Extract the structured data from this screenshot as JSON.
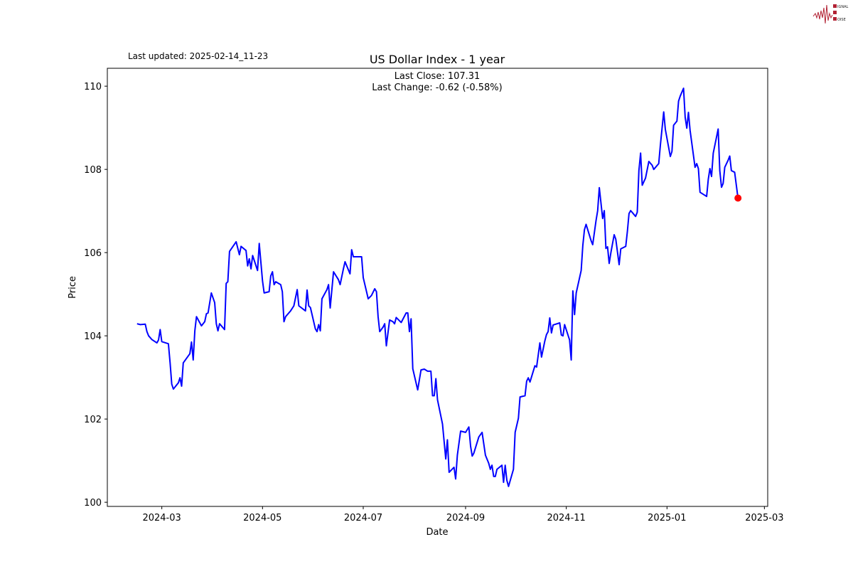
{
  "header": {
    "last_updated": "Last updated: 2025-02-14_11-23"
  },
  "logo": {
    "text": "SIGNAL 2 NOISE",
    "accent": "#b22234"
  },
  "chart_data": {
    "type": "line",
    "title": "US Dollar Index - 1 year",
    "annotations": [
      "Last Close: 107.31",
      "Last Change: -0.62 (-0.58%)"
    ],
    "xlabel": "Date",
    "ylabel": "Price",
    "xlim": [
      "2024-01-28",
      "2025-03-03"
    ],
    "ylim": [
      99.9,
      110.43
    ],
    "x_ticks": [
      "2024-03-01",
      "2024-05-01",
      "2024-07-01",
      "2024-09-01",
      "2024-11-01",
      "2025-01-01",
      "2025-03-01"
    ],
    "x_tick_labels": [
      "2024-03",
      "2024-05",
      "2024-07",
      "2024-09",
      "2024-11",
      "2025-01",
      "2025-03"
    ],
    "y_ticks": [
      100,
      102,
      104,
      106,
      108,
      110
    ],
    "y_tick_labels": [
      "100",
      "102",
      "104",
      "106",
      "108",
      "110"
    ],
    "grid": false,
    "line_color": "#0000ff",
    "last_point_color": "#ff0000",
    "last_point": {
      "date": "2025-02-13",
      "value": 107.31
    },
    "series": [
      {
        "points": [
          [
            "2024-02-15",
            104.29
          ],
          [
            "2024-02-17",
            104.27
          ],
          [
            "2024-02-20",
            104.28
          ],
          [
            "2024-02-21",
            104.1
          ],
          [
            "2024-02-22",
            104.0
          ],
          [
            "2024-02-24",
            103.91
          ],
          [
            "2024-02-27",
            103.83
          ],
          [
            "2024-02-28",
            103.9
          ],
          [
            "2024-02-29",
            104.15
          ],
          [
            "2024-03-01",
            103.86
          ],
          [
            "2024-03-05",
            103.81
          ],
          [
            "2024-03-06",
            103.35
          ],
          [
            "2024-03-07",
            102.84
          ],
          [
            "2024-03-08",
            102.72
          ],
          [
            "2024-03-11",
            102.87
          ],
          [
            "2024-03-12",
            102.99
          ],
          [
            "2024-03-13",
            102.79
          ],
          [
            "2024-03-14",
            103.35
          ],
          [
            "2024-03-18",
            103.57
          ],
          [
            "2024-03-19",
            103.85
          ],
          [
            "2024-03-20",
            103.42
          ],
          [
            "2024-03-21",
            104.12
          ],
          [
            "2024-03-22",
            104.46
          ],
          [
            "2024-03-25",
            104.24
          ],
          [
            "2024-03-27",
            104.34
          ],
          [
            "2024-03-28",
            104.53
          ],
          [
            "2024-03-29",
            104.55
          ],
          [
            "2024-03-31",
            105.03
          ],
          [
            "2024-04-02",
            104.8
          ],
          [
            "2024-04-03",
            104.29
          ],
          [
            "2024-04-04",
            104.12
          ],
          [
            "2024-04-05",
            104.29
          ],
          [
            "2024-04-08",
            104.15
          ],
          [
            "2024-04-09",
            105.26
          ],
          [
            "2024-04-10",
            105.3
          ],
          [
            "2024-04-11",
            106.03
          ],
          [
            "2024-04-15",
            106.26
          ],
          [
            "2024-04-17",
            105.95
          ],
          [
            "2024-04-18",
            106.15
          ],
          [
            "2024-04-21",
            106.05
          ],
          [
            "2024-04-22",
            105.68
          ],
          [
            "2024-04-23",
            105.85
          ],
          [
            "2024-04-24",
            105.61
          ],
          [
            "2024-04-25",
            105.93
          ],
          [
            "2024-04-28",
            105.57
          ],
          [
            "2024-04-29",
            106.22
          ],
          [
            "2024-05-01",
            105.32
          ],
          [
            "2024-05-02",
            105.03
          ],
          [
            "2024-05-05",
            105.06
          ],
          [
            "2024-05-06",
            105.44
          ],
          [
            "2024-05-07",
            105.54
          ],
          [
            "2024-05-08",
            105.23
          ],
          [
            "2024-05-09",
            105.3
          ],
          [
            "2024-05-12",
            105.23
          ],
          [
            "2024-05-13",
            105.06
          ],
          [
            "2024-05-14",
            104.34
          ],
          [
            "2024-05-15",
            104.46
          ],
          [
            "2024-05-18",
            104.6
          ],
          [
            "2024-05-20",
            104.72
          ],
          [
            "2024-05-22",
            105.11
          ],
          [
            "2024-05-23",
            104.72
          ],
          [
            "2024-05-27",
            104.6
          ],
          [
            "2024-05-28",
            105.1
          ],
          [
            "2024-05-29",
            104.72
          ],
          [
            "2024-05-30",
            104.68
          ],
          [
            "2024-06-02",
            104.17
          ],
          [
            "2024-06-03",
            104.1
          ],
          [
            "2024-06-04",
            104.27
          ],
          [
            "2024-06-05",
            104.12
          ],
          [
            "2024-06-06",
            104.89
          ],
          [
            "2024-06-09",
            105.11
          ],
          [
            "2024-06-10",
            105.23
          ],
          [
            "2024-06-11",
            104.67
          ],
          [
            "2024-06-13",
            105.54
          ],
          [
            "2024-06-16",
            105.35
          ],
          [
            "2024-06-17",
            105.23
          ],
          [
            "2024-06-19",
            105.61
          ],
          [
            "2024-06-20",
            105.78
          ],
          [
            "2024-06-23",
            105.49
          ],
          [
            "2024-06-24",
            106.07
          ],
          [
            "2024-06-25",
            105.9
          ],
          [
            "2024-06-27",
            105.9
          ],
          [
            "2024-06-30",
            105.9
          ],
          [
            "2024-07-01",
            105.4
          ],
          [
            "2024-07-04",
            104.89
          ],
          [
            "2024-07-06",
            104.97
          ],
          [
            "2024-07-08",
            105.13
          ],
          [
            "2024-07-09",
            105.06
          ],
          [
            "2024-07-10",
            104.46
          ],
          [
            "2024-07-11",
            104.1
          ],
          [
            "2024-07-13",
            104.21
          ],
          [
            "2024-07-14",
            104.29
          ],
          [
            "2024-07-15",
            103.76
          ],
          [
            "2024-07-17",
            104.38
          ],
          [
            "2024-07-19",
            104.34
          ],
          [
            "2024-07-20",
            104.29
          ],
          [
            "2024-07-21",
            104.44
          ],
          [
            "2024-07-24",
            104.32
          ],
          [
            "2024-07-27",
            104.55
          ],
          [
            "2024-07-28",
            104.55
          ],
          [
            "2024-07-29",
            104.1
          ],
          [
            "2024-07-30",
            104.41
          ],
          [
            "2024-07-31",
            103.21
          ],
          [
            "2024-08-03",
            102.7
          ],
          [
            "2024-08-05",
            103.18
          ],
          [
            "2024-08-07",
            103.2
          ],
          [
            "2024-08-09",
            103.15
          ],
          [
            "2024-08-11",
            103.15
          ],
          [
            "2024-08-12",
            102.56
          ],
          [
            "2024-08-13",
            102.56
          ],
          [
            "2024-08-14",
            102.97
          ],
          [
            "2024-08-15",
            102.46
          ],
          [
            "2024-08-18",
            101.88
          ],
          [
            "2024-08-20",
            101.04
          ],
          [
            "2024-08-21",
            101.5
          ],
          [
            "2024-08-22",
            100.72
          ],
          [
            "2024-08-25",
            100.84
          ],
          [
            "2024-08-26",
            100.56
          ],
          [
            "2024-08-27",
            101.13
          ],
          [
            "2024-08-29",
            101.71
          ],
          [
            "2024-09-01",
            101.68
          ],
          [
            "2024-09-03",
            101.81
          ],
          [
            "2024-09-04",
            101.35
          ],
          [
            "2024-09-05",
            101.11
          ],
          [
            "2024-09-06",
            101.18
          ],
          [
            "2024-09-09",
            101.57
          ],
          [
            "2024-09-11",
            101.68
          ],
          [
            "2024-09-13",
            101.13
          ],
          [
            "2024-09-15",
            100.94
          ],
          [
            "2024-09-16",
            100.79
          ],
          [
            "2024-09-17",
            100.89
          ],
          [
            "2024-09-18",
            100.62
          ],
          [
            "2024-09-19",
            100.62
          ],
          [
            "2024-09-20",
            100.79
          ],
          [
            "2024-09-23",
            100.89
          ],
          [
            "2024-09-24",
            100.48
          ],
          [
            "2024-09-25",
            100.89
          ],
          [
            "2024-09-26",
            100.53
          ],
          [
            "2024-09-27",
            100.38
          ],
          [
            "2024-09-30",
            100.79
          ],
          [
            "2024-10-01",
            101.68
          ],
          [
            "2024-10-03",
            102.02
          ],
          [
            "2024-10-04",
            102.53
          ],
          [
            "2024-10-07",
            102.56
          ],
          [
            "2024-10-08",
            102.91
          ],
          [
            "2024-10-09",
            102.99
          ],
          [
            "2024-10-10",
            102.89
          ],
          [
            "2024-10-13",
            103.28
          ],
          [
            "2024-10-14",
            103.25
          ],
          [
            "2024-10-16",
            103.83
          ],
          [
            "2024-10-17",
            103.49
          ],
          [
            "2024-10-19",
            103.88
          ],
          [
            "2024-10-20",
            104.03
          ],
          [
            "2024-10-21",
            104.1
          ],
          [
            "2024-10-22",
            104.43
          ],
          [
            "2024-10-23",
            104.07
          ],
          [
            "2024-10-24",
            104.26
          ],
          [
            "2024-10-28",
            104.31
          ],
          [
            "2024-10-29",
            104.02
          ],
          [
            "2024-10-30",
            104.0
          ],
          [
            "2024-10-31",
            104.27
          ],
          [
            "2024-11-03",
            103.9
          ],
          [
            "2024-11-04",
            103.42
          ],
          [
            "2024-11-05",
            105.08
          ],
          [
            "2024-11-06",
            104.51
          ],
          [
            "2024-11-07",
            105.03
          ],
          [
            "2024-11-10",
            105.57
          ],
          [
            "2024-11-11",
            106.17
          ],
          [
            "2024-11-12",
            106.55
          ],
          [
            "2024-11-13",
            106.68
          ],
          [
            "2024-11-16",
            106.29
          ],
          [
            "2024-11-17",
            106.19
          ],
          [
            "2024-11-19",
            106.77
          ],
          [
            "2024-11-20",
            107.01
          ],
          [
            "2024-11-21",
            107.56
          ],
          [
            "2024-11-22",
            107.2
          ],
          [
            "2024-11-23",
            106.82
          ],
          [
            "2024-11-24",
            107.01
          ],
          [
            "2024-11-25",
            106.1
          ],
          [
            "2024-11-26",
            106.14
          ],
          [
            "2024-11-27",
            105.74
          ],
          [
            "2024-11-28",
            106.0
          ],
          [
            "2024-11-30",
            106.43
          ],
          [
            "2024-12-01",
            106.32
          ],
          [
            "2024-12-03",
            105.71
          ],
          [
            "2024-12-04",
            106.09
          ],
          [
            "2024-12-07",
            106.15
          ],
          [
            "2024-12-08",
            106.51
          ],
          [
            "2024-12-09",
            106.94
          ],
          [
            "2024-12-10",
            107.01
          ],
          [
            "2024-12-13",
            106.87
          ],
          [
            "2024-12-14",
            106.97
          ],
          [
            "2024-12-15",
            107.97
          ],
          [
            "2024-12-16",
            108.39
          ],
          [
            "2024-12-17",
            107.62
          ],
          [
            "2024-12-19",
            107.79
          ],
          [
            "2024-12-21",
            108.19
          ],
          [
            "2024-12-23",
            108.1
          ],
          [
            "2024-12-24",
            108.0
          ],
          [
            "2024-12-27",
            108.14
          ],
          [
            "2024-12-28",
            108.58
          ],
          [
            "2024-12-30",
            109.38
          ],
          [
            "2024-12-31",
            108.96
          ],
          [
            "2025-01-03",
            108.31
          ],
          [
            "2025-01-04",
            108.43
          ],
          [
            "2025-01-05",
            109.06
          ],
          [
            "2025-01-07",
            109.16
          ],
          [
            "2025-01-08",
            109.64
          ],
          [
            "2025-01-09",
            109.76
          ],
          [
            "2025-01-11",
            109.95
          ],
          [
            "2025-01-12",
            109.25
          ],
          [
            "2025-01-13",
            108.99
          ],
          [
            "2025-01-14",
            109.37
          ],
          [
            "2025-01-15",
            108.94
          ],
          [
            "2025-01-18",
            108.05
          ],
          [
            "2025-01-19",
            108.14
          ],
          [
            "2025-01-20",
            108.02
          ],
          [
            "2025-01-21",
            107.45
          ],
          [
            "2025-01-25",
            107.35
          ],
          [
            "2025-01-26",
            107.76
          ],
          [
            "2025-01-27",
            108.02
          ],
          [
            "2025-01-28",
            107.83
          ],
          [
            "2025-01-29",
            108.39
          ],
          [
            "2025-02-01",
            108.97
          ],
          [
            "2025-02-02",
            107.97
          ],
          [
            "2025-02-03",
            107.57
          ],
          [
            "2025-02-04",
            107.66
          ],
          [
            "2025-02-05",
            108.05
          ],
          [
            "2025-02-07",
            108.22
          ],
          [
            "2025-02-08",
            108.32
          ],
          [
            "2025-02-09",
            107.97
          ],
          [
            "2025-02-11",
            107.93
          ],
          [
            "2025-02-13",
            107.31
          ]
        ]
      }
    ]
  }
}
